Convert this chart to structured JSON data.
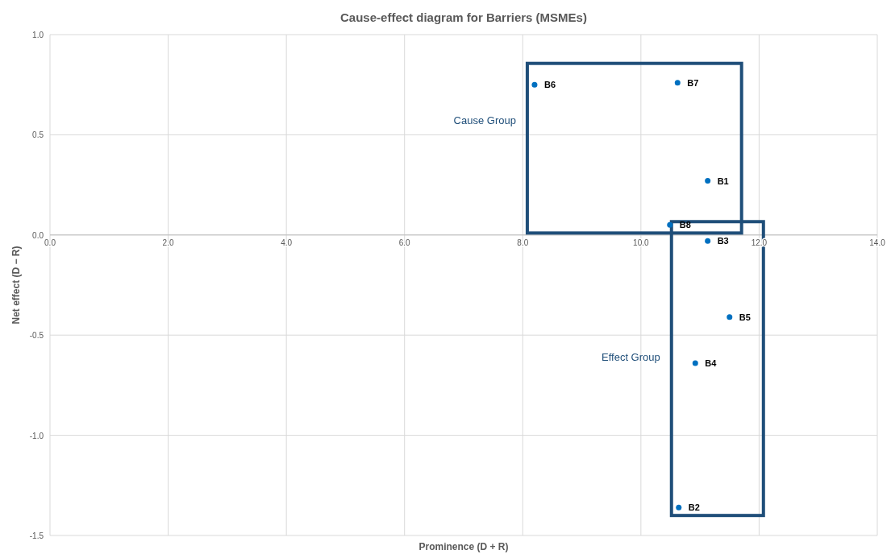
{
  "chart_data": {
    "type": "scatter",
    "title": "Cause-effect diagram for Barriers (MSMEs)",
    "xlabel": "Prominence (D + R)",
    "ylabel": "Net effect (D − R)",
    "xlim": [
      0,
      14
    ],
    "ylim": [
      -1.5,
      1
    ],
    "xticks": [
      {
        "value": 0,
        "label": "0.0"
      },
      {
        "value": 2,
        "label": "2.0"
      },
      {
        "value": 4,
        "label": "4.0"
      },
      {
        "value": 6,
        "label": "6.0"
      },
      {
        "value": 8,
        "label": "8.0"
      },
      {
        "value": 10,
        "label": "10.0"
      },
      {
        "value": 12,
        "label": "12.0"
      },
      {
        "value": 14,
        "label": "14.0"
      }
    ],
    "yticks": [
      {
        "value": -1.5,
        "label": "-1.5"
      },
      {
        "value": -1,
        "label": "-1.0"
      },
      {
        "value": -0.5,
        "label": "-0.5"
      },
      {
        "value": 0,
        "label": "0.0"
      },
      {
        "value": 0.5,
        "label": "0.5"
      },
      {
        "value": 1,
        "label": "1.0"
      }
    ],
    "grid": true,
    "marker": "circle",
    "annotations": [
      "Cause Group",
      "Effect Group"
    ],
    "series": [
      {
        "name": "B1",
        "color": "#0070c0",
        "x": [
          11.13
        ],
        "values": [
          0.27
        ]
      },
      {
        "name": "B2",
        "color": "#0070c0",
        "x": [
          10.64
        ],
        "values": [
          -1.36
        ]
      },
      {
        "name": "B3",
        "color": "#0070c0",
        "x": [
          11.13
        ],
        "values": [
          -0.03
        ]
      },
      {
        "name": "B4",
        "color": "#0070c0",
        "x": [
          10.92
        ],
        "values": [
          -0.64
        ]
      },
      {
        "name": "B5",
        "color": "#0070c0",
        "x": [
          11.5
        ],
        "values": [
          -0.41
        ]
      },
      {
        "name": "B6",
        "color": "#0070c0",
        "x": [
          8.2
        ],
        "values": [
          0.75
        ]
      },
      {
        "name": "B7",
        "color": "#0070c0",
        "x": [
          10.62
        ],
        "values": [
          0.76
        ]
      },
      {
        "name": "B8",
        "color": "#0070c0",
        "x": [
          10.49
        ],
        "values": [
          0.05
        ]
      }
    ]
  }
}
